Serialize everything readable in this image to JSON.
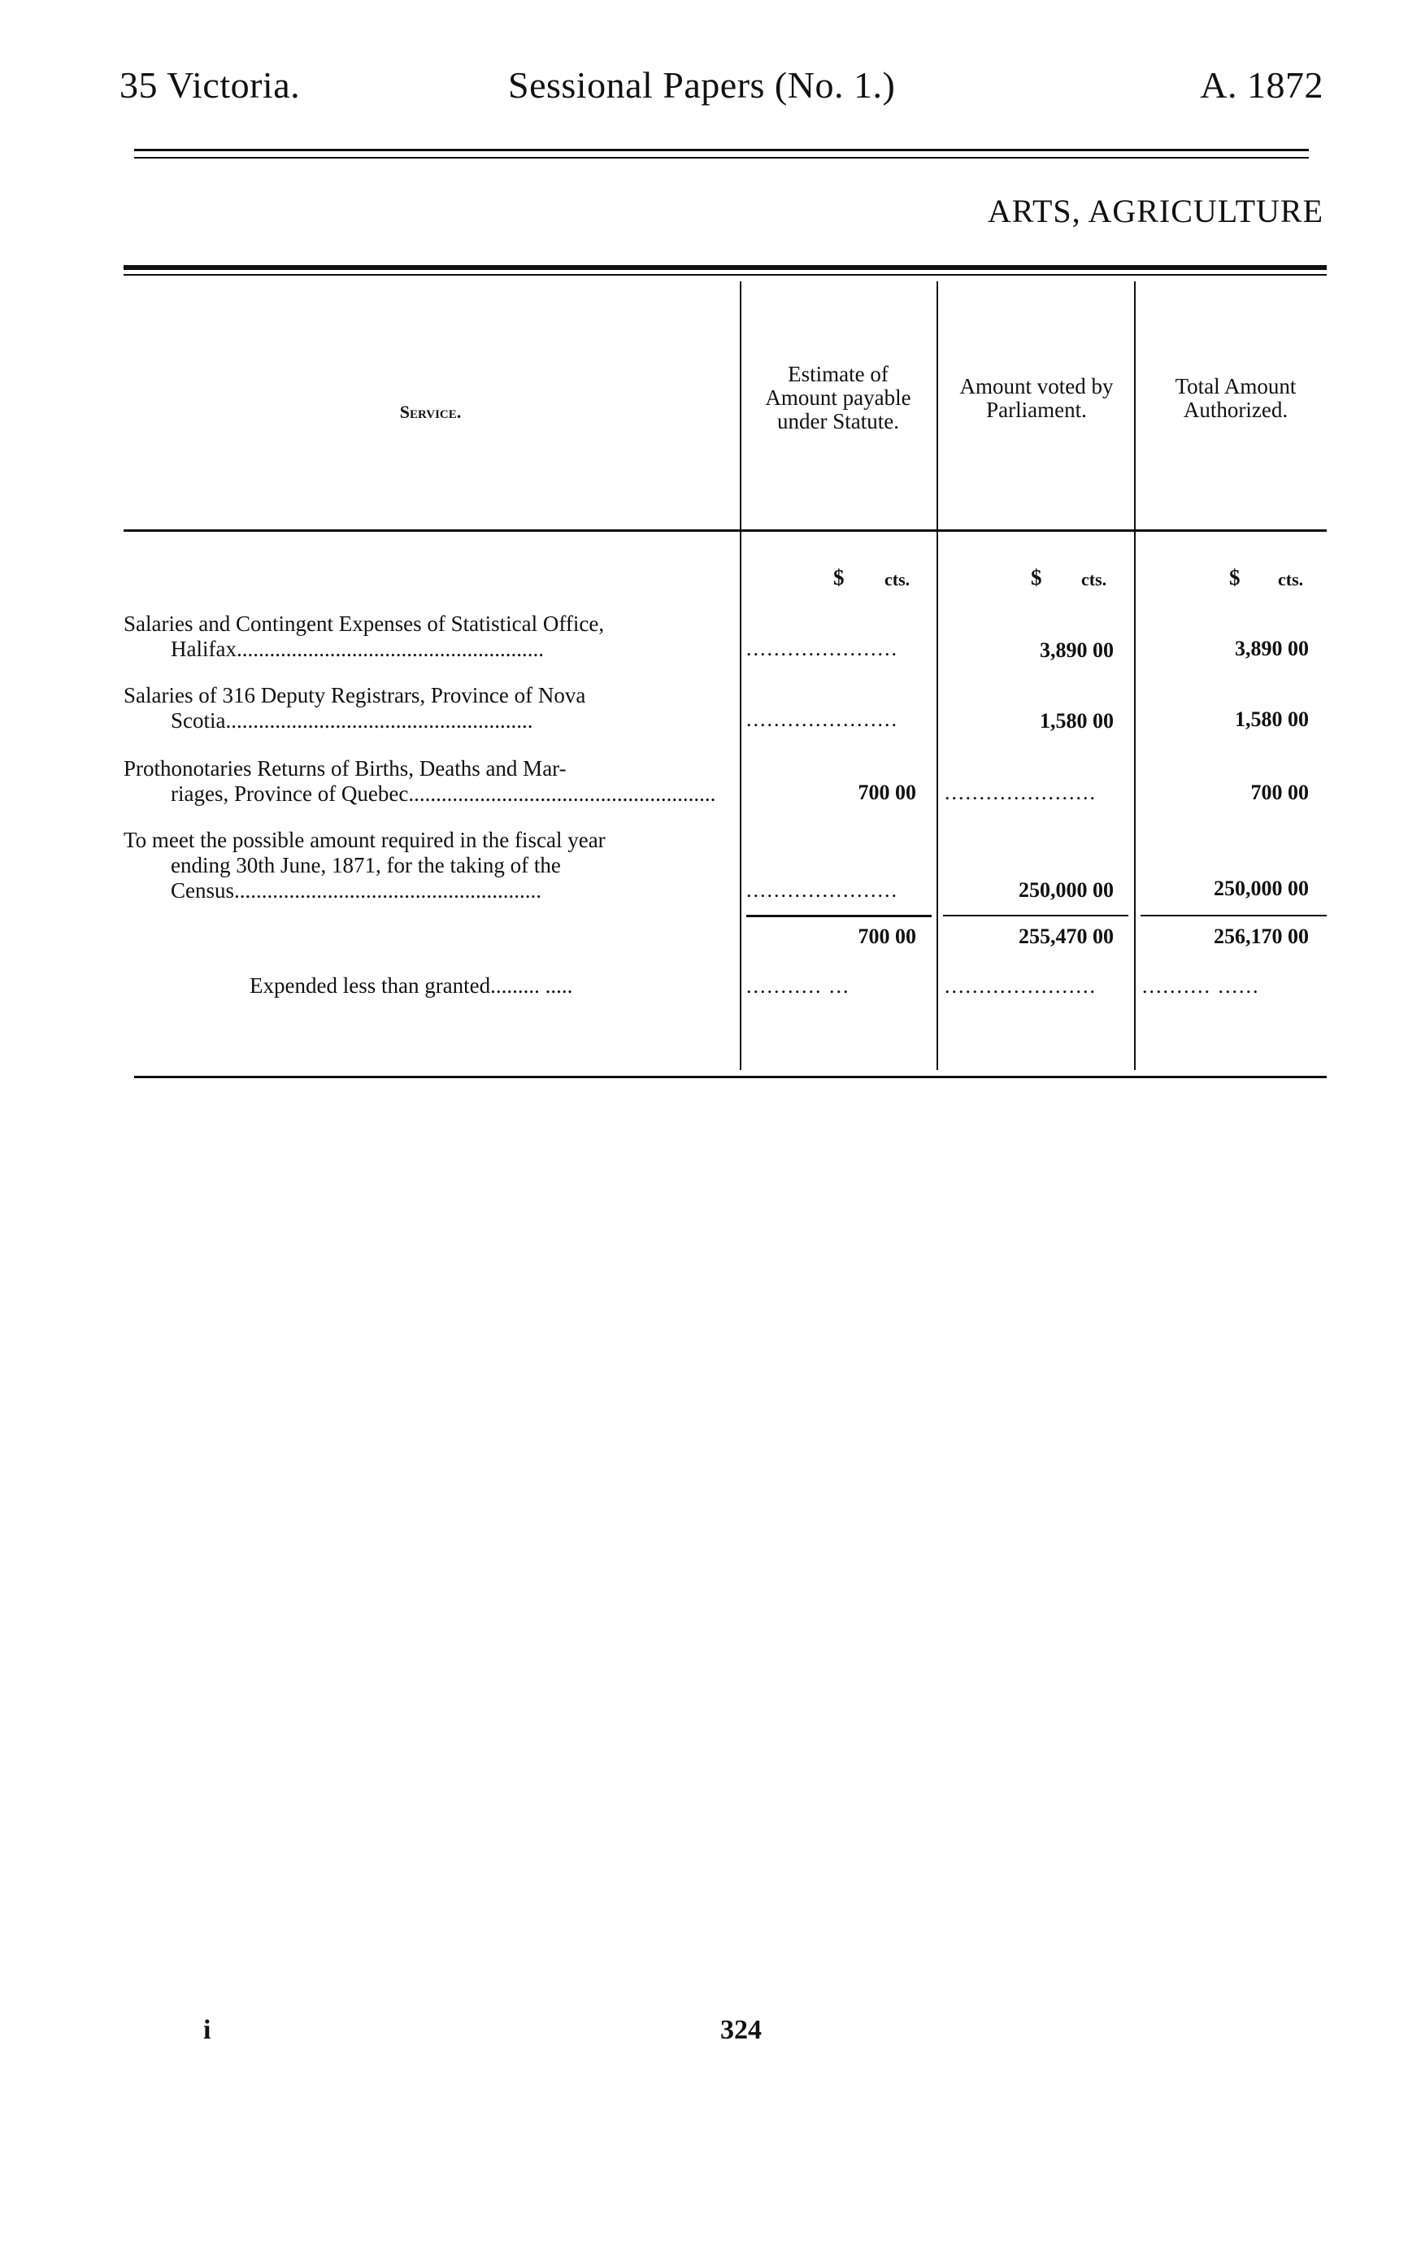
{
  "header": {
    "left": "35 Victoria.",
    "center": "Sessional Papers (No. 1.)",
    "right": "A. 1872"
  },
  "section_title": "ARTS, AGRICULTURE",
  "table": {
    "columns": [
      {
        "label": "Service.",
        "unit": ""
      },
      {
        "label": "Estimate of Amount payable under Statute.",
        "unit_dollar": "$",
        "unit_cents": "cts."
      },
      {
        "label": "Amount voted by Parliament.",
        "unit_dollar": "$",
        "unit_cents": "cts."
      },
      {
        "label": "Total Amount Authorized.",
        "unit_dollar": "$",
        "unit_cents": "cts."
      }
    ],
    "rows": [
      {
        "lines": [
          "Salaries and Contingent Expenses of Statistical Office,",
          "Halifax"
        ],
        "statute": "",
        "voted": "3,890 00",
        "total": "3,890 00"
      },
      {
        "lines": [
          "Salaries of 316 Deputy Registrars, Province of Nova",
          "Scotia"
        ],
        "statute": "",
        "voted": "1,580 00",
        "total": "1,580 00"
      },
      {
        "lines": [
          "Prothonotaries Returns of Births, Deaths and Mar-",
          "riages, Province of Quebec"
        ],
        "statute": "700 00",
        "voted": "",
        "total": "700 00"
      },
      {
        "lines": [
          "To meet the possible amount required in the fiscal year",
          "ending 30th June, 1871, for the taking of the",
          "Census"
        ],
        "statute": "",
        "voted": "250,000 00",
        "total": "250,000 00"
      }
    ],
    "totals": {
      "statute": "700 00",
      "voted": "255,470 00",
      "total": "256,170 00"
    },
    "expended_label": "Expended less than granted"
  },
  "footer": {
    "left": "i",
    "page_number": "324"
  }
}
